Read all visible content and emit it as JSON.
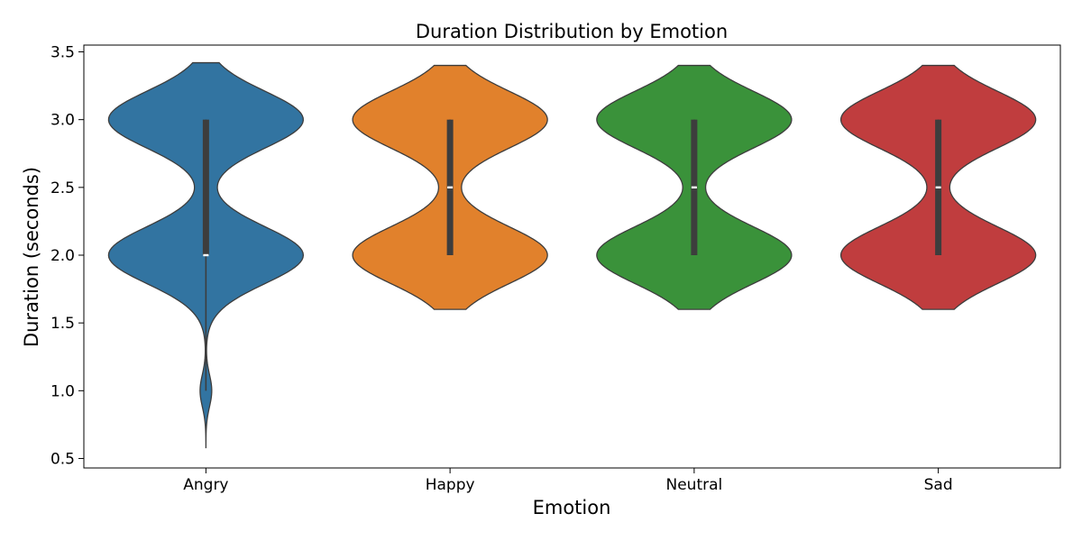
{
  "chart_data": {
    "type": "violin",
    "title": "Duration Distribution by Emotion",
    "xlabel": "Emotion",
    "ylabel": "Duration (seconds)",
    "ylim": [
      0.43,
      3.55
    ],
    "yticks": [
      "0.5",
      "1.0",
      "1.5",
      "2.0",
      "2.5",
      "3.0",
      "3.5"
    ],
    "categories": [
      "Angry",
      "Happy",
      "Neutral",
      "Sad"
    ],
    "grid": false,
    "legend": "none",
    "series": [
      {
        "category": "Angry",
        "color": "#3274a1",
        "support": [
          0.58,
          3.42
        ],
        "min": 1.0,
        "q1": 2.0,
        "median": 2.0,
        "q3": 3.0,
        "max": 3.0
      },
      {
        "category": "Happy",
        "color": "#e1812c",
        "support": [
          1.6,
          3.4
        ],
        "min": 2.0,
        "q1": 2.0,
        "median": 2.5,
        "q3": 3.0,
        "max": 3.0
      },
      {
        "category": "Neutral",
        "color": "#3a923a",
        "support": [
          1.6,
          3.4
        ],
        "min": 2.0,
        "q1": 2.0,
        "median": 2.5,
        "q3": 3.0,
        "max": 3.0
      },
      {
        "category": "Sad",
        "color": "#c03d3e",
        "support": [
          1.6,
          3.4
        ],
        "min": 2.0,
        "q1": 2.0,
        "median": 2.5,
        "q3": 3.0,
        "max": 3.0
      }
    ]
  }
}
